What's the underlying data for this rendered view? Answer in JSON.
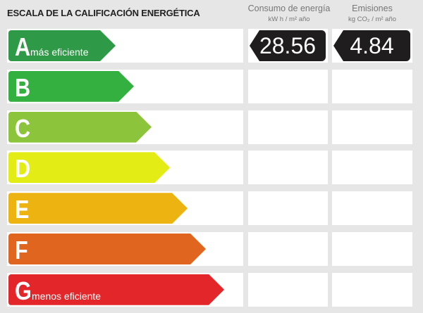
{
  "title": "ESCALA DE LA CALIFICACIÓN ENERGÉTICA",
  "columns": [
    {
      "label": "Consumo de energía",
      "unit": "kW h / m² año"
    },
    {
      "label": "Emisiones",
      "unit": "kg CO₂ / m² año"
    }
  ],
  "ratings": [
    {
      "letter": "A",
      "label": "más eficiente",
      "color": "#2e9a47"
    },
    {
      "letter": "B",
      "label": "",
      "color": "#33b040"
    },
    {
      "letter": "C",
      "label": "",
      "color": "#8cc43c"
    },
    {
      "letter": "D",
      "label": "",
      "color": "#e3ec14"
    },
    {
      "letter": "E",
      "label": "",
      "color": "#edb311"
    },
    {
      "letter": "F",
      "label": "",
      "color": "#e0661f"
    },
    {
      "letter": "G",
      "label": "menos eficiente",
      "color": "#e3262a"
    }
  ],
  "result": {
    "rating": "A",
    "consumption": "28.56",
    "emissions": "4.84"
  }
}
